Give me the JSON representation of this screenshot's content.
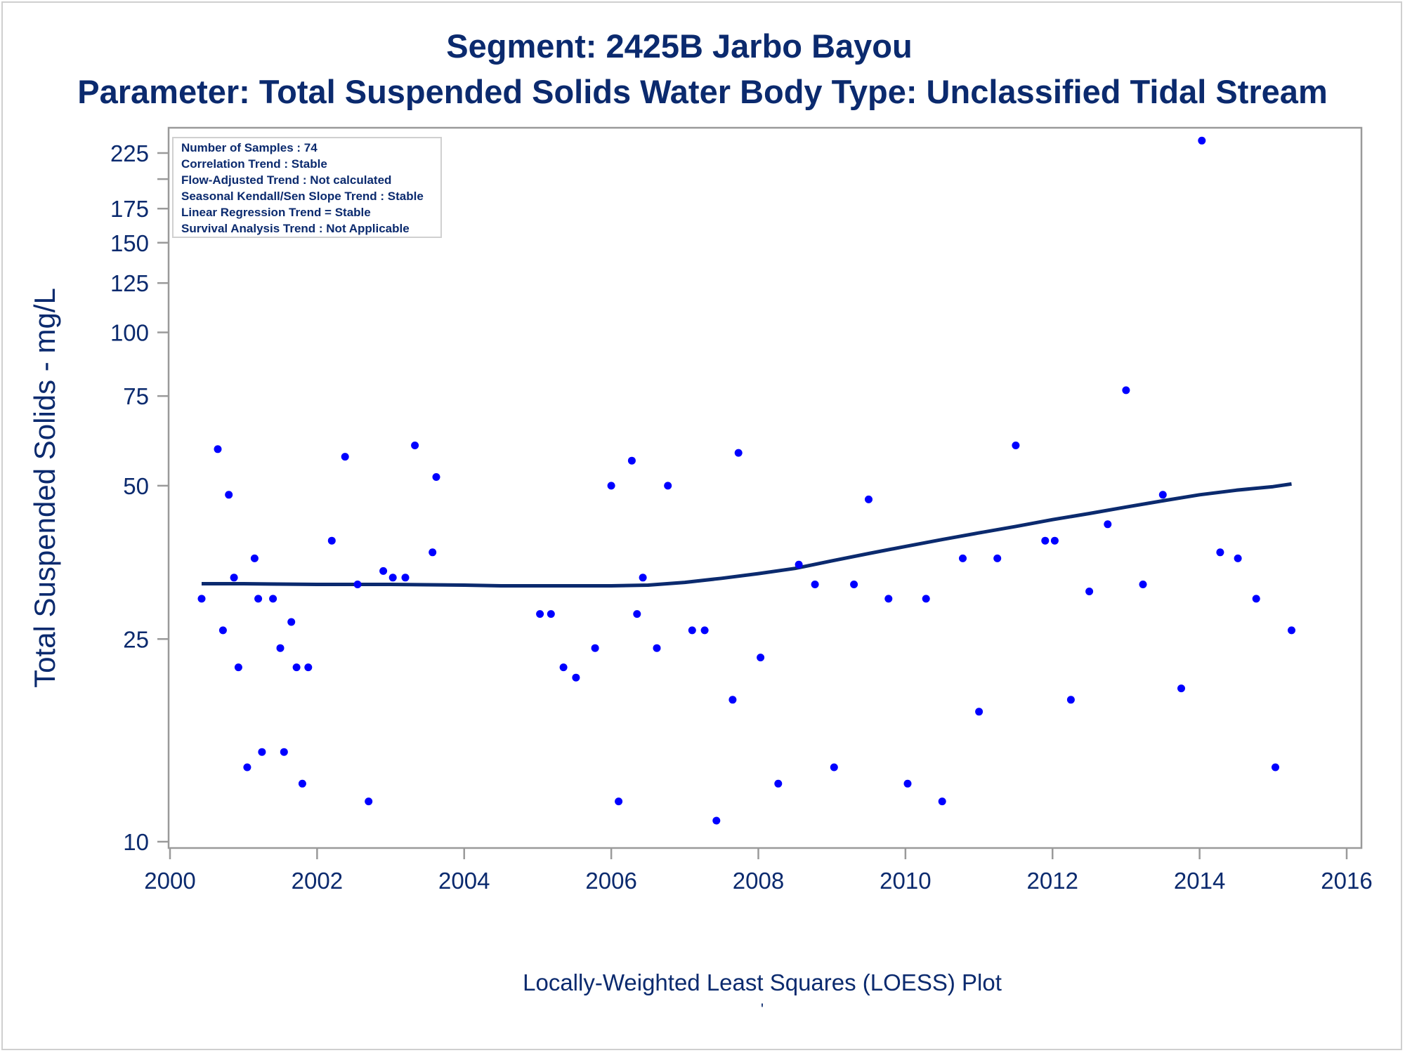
{
  "chart_data": {
    "type": "scatter",
    "title": "Segment: 2425B  Jarbo Bayou",
    "subtitle": "Parameter: Total Suspended Solids   Water Body Type: Unclassified Tidal Stream",
    "ylabel": "Total Suspended Solids - mg/L",
    "xlabel": "",
    "footnote": "Locally-Weighted Least Squares (LOESS) Plot",
    "footnote_mark": "'",
    "y_scale": "log",
    "xlim": [
      2000,
      2016
    ],
    "ylim": [
      10,
      245
    ],
    "x_ticks": [
      2000,
      2002,
      2004,
      2006,
      2008,
      2010,
      2012,
      2014,
      2016
    ],
    "y_ticks": [
      10,
      25,
      50,
      75,
      100,
      125,
      150,
      175,
      225
    ],
    "y_minor_ticks": [
      200
    ],
    "grid": false,
    "legend": "none",
    "colors": {
      "points": "#0000ff",
      "line": "#0b2a6e",
      "text": "#0b2a6e",
      "axis": "#9a9a9a"
    },
    "stats_box": {
      "placement": "top-left",
      "lines": [
        "Number of Samples : 74",
        "Correlation Trend : Stable",
        "Flow-Adjusted Trend : Not calculated",
        "Seasonal Kendall/Sen Slope Trend : Stable",
        "Linear Regression Trend = Stable",
        "Survival Analysis Trend : Not Applicable"
      ]
    },
    "points": [
      [
        2000.43,
        30
      ],
      [
        2000.65,
        59
      ],
      [
        2000.72,
        26
      ],
      [
        2000.8,
        48
      ],
      [
        2000.87,
        33
      ],
      [
        2000.93,
        22
      ],
      [
        2001.05,
        14
      ],
      [
        2001.15,
        36
      ],
      [
        2001.2,
        30
      ],
      [
        2001.25,
        15
      ],
      [
        2001.4,
        30
      ],
      [
        2001.5,
        24
      ],
      [
        2001.55,
        15
      ],
      [
        2001.65,
        27
      ],
      [
        2001.72,
        22
      ],
      [
        2001.8,
        13
      ],
      [
        2001.88,
        22
      ],
      [
        2002.2,
        39
      ],
      [
        2002.38,
        57
      ],
      [
        2002.55,
        32
      ],
      [
        2002.7,
        12
      ],
      [
        2002.9,
        34
      ],
      [
        2003.03,
        33
      ],
      [
        2003.2,
        33
      ],
      [
        2003.33,
        60
      ],
      [
        2003.57,
        37
      ],
      [
        2003.62,
        52
      ],
      [
        2005.03,
        28
      ],
      [
        2005.18,
        28
      ],
      [
        2005.35,
        22
      ],
      [
        2005.52,
        21
      ],
      [
        2005.78,
        24
      ],
      [
        2006.0,
        50
      ],
      [
        2006.1,
        12
      ],
      [
        2006.28,
        56
      ],
      [
        2006.35,
        28
      ],
      [
        2006.43,
        33
      ],
      [
        2006.62,
        24
      ],
      [
        2006.77,
        50
      ],
      [
        2007.1,
        26
      ],
      [
        2007.27,
        26
      ],
      [
        2007.43,
        11
      ],
      [
        2007.65,
        19
      ],
      [
        2007.73,
        58
      ],
      [
        2008.03,
        23
      ],
      [
        2008.27,
        13
      ],
      [
        2008.55,
        35
      ],
      [
        2008.77,
        32
      ],
      [
        2009.03,
        14
      ],
      [
        2009.3,
        32
      ],
      [
        2009.5,
        47
      ],
      [
        2009.77,
        30
      ],
      [
        2010.03,
        13
      ],
      [
        2010.28,
        30
      ],
      [
        2010.5,
        12
      ],
      [
        2010.78,
        36
      ],
      [
        2011.0,
        18
      ],
      [
        2011.25,
        36
      ],
      [
        2011.5,
        60
      ],
      [
        2011.9,
        39
      ],
      [
        2012.03,
        39
      ],
      [
        2012.25,
        19
      ],
      [
        2012.5,
        31
      ],
      [
        2012.75,
        42
      ],
      [
        2013.0,
        77
      ],
      [
        2013.23,
        32
      ],
      [
        2013.5,
        48
      ],
      [
        2013.75,
        20
      ],
      [
        2014.03,
        238
      ],
      [
        2014.28,
        37
      ],
      [
        2014.52,
        36
      ],
      [
        2014.77,
        30
      ],
      [
        2015.03,
        14
      ],
      [
        2015.25,
        26
      ]
    ],
    "loess": [
      [
        2000.43,
        32.1
      ],
      [
        2001.0,
        32.1
      ],
      [
        2002.0,
        32.0
      ],
      [
        2003.0,
        32.0
      ],
      [
        2004.0,
        31.9
      ],
      [
        2004.5,
        31.8
      ],
      [
        2005.0,
        31.8
      ],
      [
        2006.0,
        31.8
      ],
      [
        2006.5,
        31.9
      ],
      [
        2007.0,
        32.3
      ],
      [
        2007.5,
        32.9
      ],
      [
        2008.0,
        33.6
      ],
      [
        2008.5,
        34.4
      ],
      [
        2009.0,
        35.6
      ],
      [
        2009.5,
        36.8
      ],
      [
        2010.0,
        38.0
      ],
      [
        2010.5,
        39.2
      ],
      [
        2011.0,
        40.4
      ],
      [
        2011.5,
        41.6
      ],
      [
        2012.0,
        42.9
      ],
      [
        2012.5,
        44.1
      ],
      [
        2013.0,
        45.4
      ],
      [
        2013.5,
        46.7
      ],
      [
        2014.0,
        48.0
      ],
      [
        2014.5,
        49.0
      ],
      [
        2015.0,
        49.8
      ],
      [
        2015.25,
        50.4
      ]
    ]
  }
}
